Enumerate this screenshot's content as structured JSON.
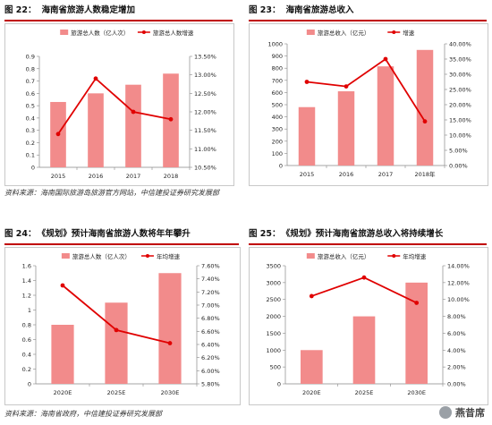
{
  "figures": [
    {
      "id_label": "图 22：",
      "title": "海南省旅游人数稳定增加",
      "chart_data": {
        "type": "bar+line",
        "categories": [
          "2015",
          "2016",
          "2017",
          "2018"
        ],
        "bar_series": {
          "name": "旅游总人数（亿人次）",
          "values": [
            0.53,
            0.6,
            0.67,
            0.76
          ],
          "color": "#f28b8b"
        },
        "line_series": {
          "name": "旅游总人数增速",
          "values": [
            11.4,
            12.9,
            12.0,
            11.8
          ],
          "color": "#e00000"
        },
        "left_ticks": [
          "0",
          "0.1",
          "0.2",
          "0.3",
          "0.4",
          "0.5",
          "0.6",
          "0.7",
          "0.8",
          "0.9"
        ],
        "left_ylim": [
          0,
          0.9
        ],
        "right_ticks": [
          "10.50%",
          "11.00%",
          "11.50%",
          "12.00%",
          "12.50%",
          "13.00%",
          "13.50%"
        ],
        "right_ylim": [
          10.5,
          13.5
        ],
        "legend_position": "top-center",
        "grid": false
      }
    },
    {
      "id_label": "图 23：",
      "title": "海南省旅游总收入",
      "chart_data": {
        "type": "bar+line",
        "categories": [
          "2015",
          "2016",
          "2017",
          "2018年"
        ],
        "bar_series": {
          "name": "旅游总收入（亿元）",
          "values": [
            480,
            610,
            815,
            950
          ],
          "color": "#f28b8b"
        },
        "line_series": {
          "name": "增速",
          "values": [
            27.5,
            26.0,
            35.0,
            14.5
          ],
          "color": "#e00000"
        },
        "left_ticks": [
          "0",
          "100",
          "200",
          "300",
          "400",
          "500",
          "600",
          "700",
          "800",
          "900",
          "1000"
        ],
        "left_ylim": [
          0,
          1000
        ],
        "right_ticks": [
          "0.00%",
          "5.00%",
          "10.00%",
          "15.00%",
          "20.00%",
          "25.00%",
          "30.00%",
          "35.00%",
          "40.00%"
        ],
        "right_ylim": [
          0,
          40
        ],
        "legend_position": "top-center",
        "grid": false
      }
    },
    {
      "id_label": "图 24：",
      "title": "《规划》预计海南省旅游人数将年年攀升",
      "chart_data": {
        "type": "bar+line",
        "categories": [
          "2020E",
          "2025E",
          "2030E"
        ],
        "bar_series": {
          "name": "旅游总人数（亿人次）",
          "values": [
            0.8,
            1.1,
            1.5
          ],
          "color": "#f28b8b"
        },
        "line_series": {
          "name": "年均增速",
          "values": [
            7.3,
            6.62,
            6.42
          ],
          "color": "#e00000"
        },
        "left_ticks": [
          "0",
          "0.2",
          "0.4",
          "0.6",
          "0.8",
          "1",
          "1.2",
          "1.4",
          "1.6"
        ],
        "left_ylim": [
          0,
          1.6
        ],
        "right_ticks": [
          "5.80%",
          "6.00%",
          "6.20%",
          "6.40%",
          "6.60%",
          "6.80%",
          "7.00%",
          "7.20%",
          "7.40%",
          "7.60%"
        ],
        "right_ylim": [
          5.8,
          7.6
        ],
        "legend_position": "top-center",
        "grid": false
      }
    },
    {
      "id_label": "图 25：",
      "title": "《规划》预计海南省旅游总收入将持续增长",
      "chart_data": {
        "type": "bar+line",
        "categories": [
          "2020E",
          "2025E",
          "2030E"
        ],
        "bar_series": {
          "name": "旅游总收入（亿元）",
          "values": [
            1000,
            2000,
            3000
          ],
          "color": "#f28b8b"
        },
        "line_series": {
          "name": "年均增速",
          "values": [
            10.4,
            12.6,
            9.6
          ],
          "color": "#e00000"
        },
        "left_ticks": [
          "0",
          "500",
          "1000",
          "1500",
          "2000",
          "2500",
          "3000",
          "3500"
        ],
        "left_ylim": [
          0,
          3500
        ],
        "right_ticks": [
          "0.00%",
          "2.00%",
          "4.00%",
          "6.00%",
          "8.00%",
          "10.00%",
          "12.00%",
          "14.00%"
        ],
        "right_ylim": [
          0,
          14
        ],
        "legend_position": "top-center",
        "grid": false
      }
    }
  ],
  "sources": {
    "top": "资料来源：海南国际旅游岛旅游官方网站，中信建投证券研究发展部",
    "bottom": "资料来源：海南省政府，中信建投证券研究发展部"
  },
  "watermark": "燕昔席"
}
